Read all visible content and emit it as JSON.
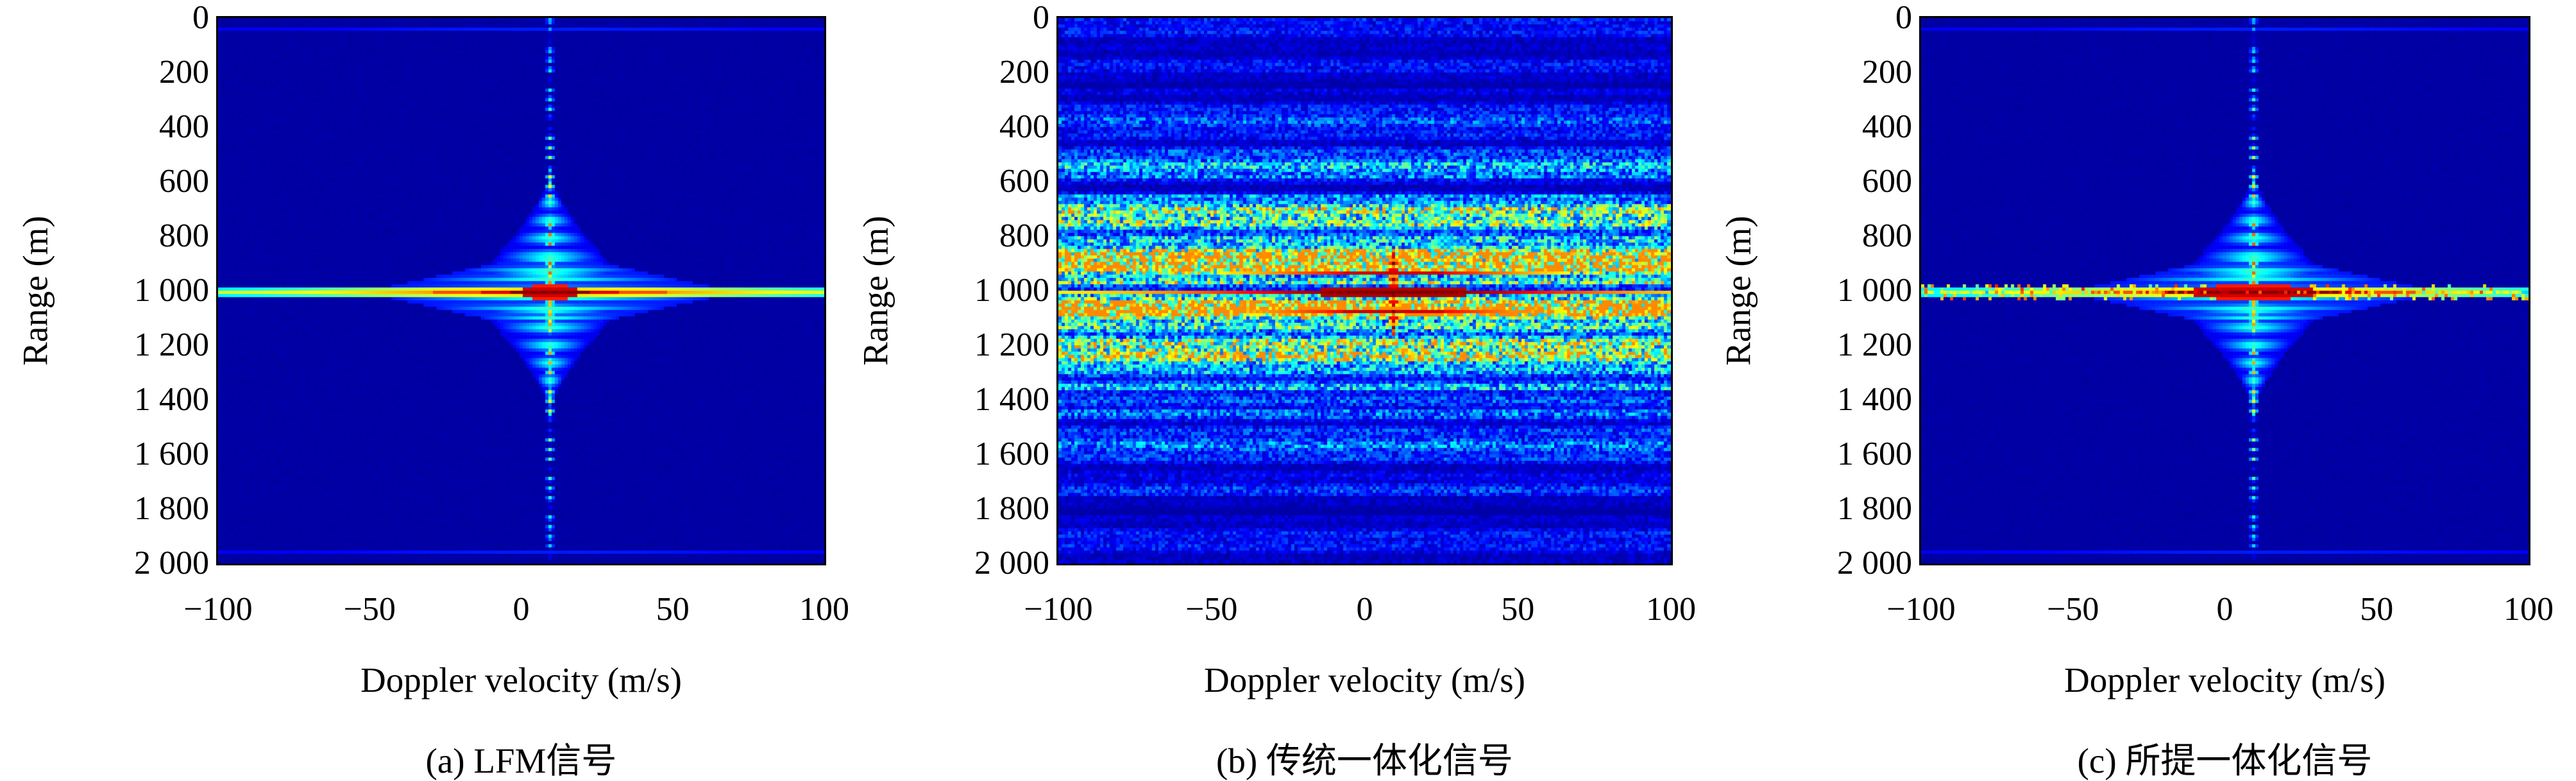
{
  "figure": {
    "description": "Range-Doppler ambiguity heatmaps comparing three radar waveforms",
    "background_color": "#ffffff",
    "text_color": "#000000"
  },
  "chart_data": {
    "type": "heatmap",
    "colormap": "jet",
    "layout": {
      "grid": "1x3",
      "legend": "none",
      "gridlines": false,
      "y_direction": "down"
    },
    "axes": {
      "xlabel": "Doppler velocity (m/s)",
      "ylabel": "Range (m)",
      "xlim": [
        -100,
        100
      ],
      "ylim": [
        0,
        2000
      ],
      "x_ticks": [
        {
          "value": -100,
          "label": "−100"
        },
        {
          "value": -50,
          "label": "−50"
        },
        {
          "value": 0,
          "label": "0"
        },
        {
          "value": 50,
          "label": "50"
        },
        {
          "value": 100,
          "label": "100"
        }
      ],
      "y_ticks": [
        {
          "value": 0,
          "label": "0"
        },
        {
          "value": 200,
          "label": "200"
        },
        {
          "value": 400,
          "label": "400"
        },
        {
          "value": 600,
          "label": "600"
        },
        {
          "value": 800,
          "label": "800"
        },
        {
          "value": 1000,
          "label": "1 000"
        },
        {
          "value": 1200,
          "label": "1 200"
        },
        {
          "value": 1400,
          "label": "1 400"
        },
        {
          "value": 1600,
          "label": "1 600"
        },
        {
          "value": 1800,
          "label": "1 800"
        },
        {
          "value": 2000,
          "label": "2 000"
        }
      ]
    },
    "panels": [
      {
        "id": "a",
        "caption": "(a) LFM信号",
        "peak": {
          "doppler_mps": 10,
          "range_m": 1000
        },
        "pattern": {
          "style": "thumbtack",
          "seed": 11,
          "background_level": 0.03,
          "red_halfwidth_mps": 13,
          "speckle": 0,
          "cloud": {
            "halfwidth_mps": 30,
            "halfheight_m": 450
          },
          "wings": {
            "halfwidth_mps": 62,
            "halfheight_m": 150
          },
          "vertical_ridge": {
            "full_height": true,
            "sigma_m": 300
          },
          "horizontal_ridge": {
            "full_width": true,
            "edge_level": 0.58
          }
        }
      },
      {
        "id": "b",
        "caption": "(b) 传统一体化信号",
        "peak": {
          "doppler_mps": 10,
          "range_m": 1000
        },
        "pattern": {
          "style": "noisy",
          "seed": 77,
          "noise_floor": 0.1,
          "band_sigma_m": 300,
          "bright_band_sigma_m": 110,
          "bulge_halfwidth_mps": 16,
          "sideline_offset_m": 73,
          "vertical_ridge_halfextent_m": 160,
          "line_edge_level": 0.6
        }
      },
      {
        "id": "c",
        "caption": "(c) 所提一体化信号",
        "peak": {
          "doppler_mps": 10,
          "range_m": 1000
        },
        "pattern": {
          "style": "thumbtack",
          "seed": 42,
          "background_level": 0.03,
          "red_halfwidth_mps": 28,
          "speckle": 0.08,
          "cloud": {
            "halfwidth_mps": 30,
            "halfheight_m": 450
          },
          "wings": {
            "halfwidth_mps": 62,
            "halfheight_m": 150
          },
          "vertical_ridge": {
            "full_height": true,
            "sigma_m": 320
          },
          "horizontal_ridge": {
            "full_width": true,
            "edge_level": 0.58
          }
        }
      }
    ]
  }
}
